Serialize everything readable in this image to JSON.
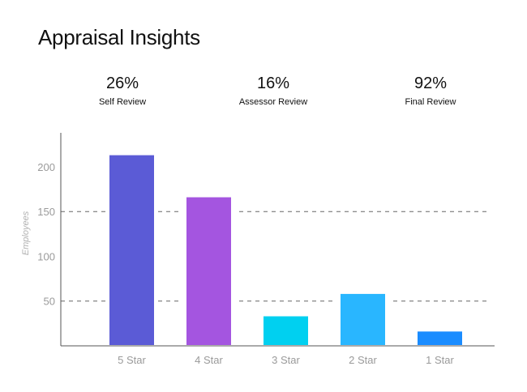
{
  "title": "Appraisal Insights",
  "kpis": [
    {
      "value": "26%",
      "label": "Self Review"
    },
    {
      "value": "16%",
      "label": "Assessor Review"
    },
    {
      "value": "92%",
      "label": "Final Review"
    }
  ],
  "chart_data": {
    "type": "bar",
    "categories": [
      "5 Star",
      "4 Star",
      "3 Star",
      "2 Star",
      "1 Star"
    ],
    "values": [
      213,
      166,
      33,
      58,
      16
    ],
    "colors": [
      "#5b5bd6",
      "#a455e0",
      "#00d0f0",
      "#29b6ff",
      "#1a8cff"
    ],
    "ylabel": "Employees",
    "xlabel": "",
    "yticks": [
      50,
      100,
      150,
      200
    ],
    "dashed_gridlines": [
      50,
      150
    ],
    "ylim": [
      0,
      238
    ]
  }
}
